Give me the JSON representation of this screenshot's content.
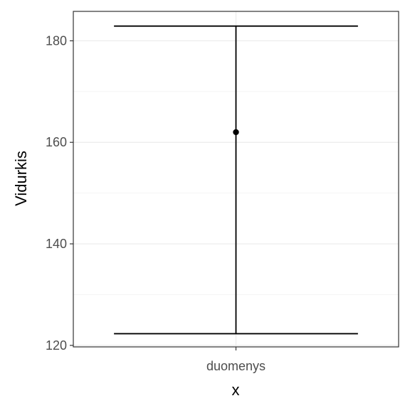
{
  "chart_data": {
    "type": "errorbar",
    "categories": [
      "duomenys"
    ],
    "series": [
      {
        "mean": 162,
        "lower": 122.3,
        "upper": 182.9
      }
    ],
    "xlabel": "x",
    "ylabel": "Vidurkis",
    "ylim": [
      119.7,
      185.8
    ],
    "yticks": [
      120,
      140,
      160,
      180
    ],
    "grid": true,
    "theme": "bw"
  }
}
